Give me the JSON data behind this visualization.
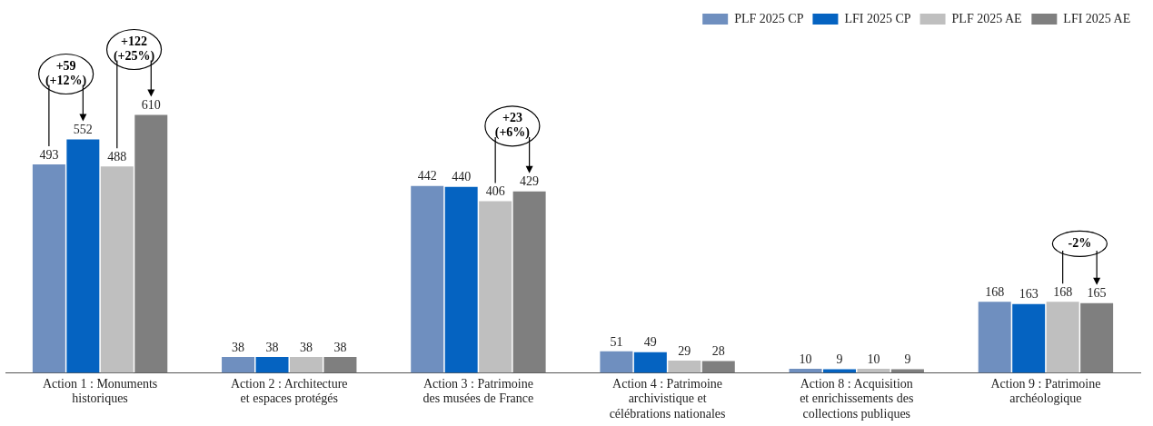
{
  "chart_data": {
    "type": "bar",
    "categories": [
      "Action 1 : Monuments historiques",
      "Action 2 : Architecture et espaces protégés",
      "Action 3 : Patrimoine des musées de France",
      "Action 4 : Patrimoine archivistique et célébrations nationales",
      "Action 8 : Acquisition et enrichissements des collections publiques",
      "Action 9 : Patrimoine archéologique"
    ],
    "series": [
      {
        "name": "PLF 2025 CP",
        "color": "#6f8fbf",
        "values": [
          493,
          38,
          442,
          51,
          10,
          168
        ]
      },
      {
        "name": "LFI 2025 CP",
        "color": "#0563c1",
        "values": [
          552,
          38,
          440,
          49,
          9,
          163
        ]
      },
      {
        "name": "PLF 2025 AE",
        "color": "#bfbfbf",
        "values": [
          488,
          38,
          406,
          29,
          10,
          168
        ]
      },
      {
        "name": "LFI 2025 AE",
        "color": "#7f7f7f",
        "values": [
          610,
          38,
          429,
          28,
          9,
          165
        ]
      }
    ],
    "data_labels": true,
    "legend": "top right",
    "grid": false,
    "annotations": [
      "+59\n(+12%)",
      "+122\n(+25%)",
      "+23\n(+6%)",
      "-2%"
    ]
  }
}
